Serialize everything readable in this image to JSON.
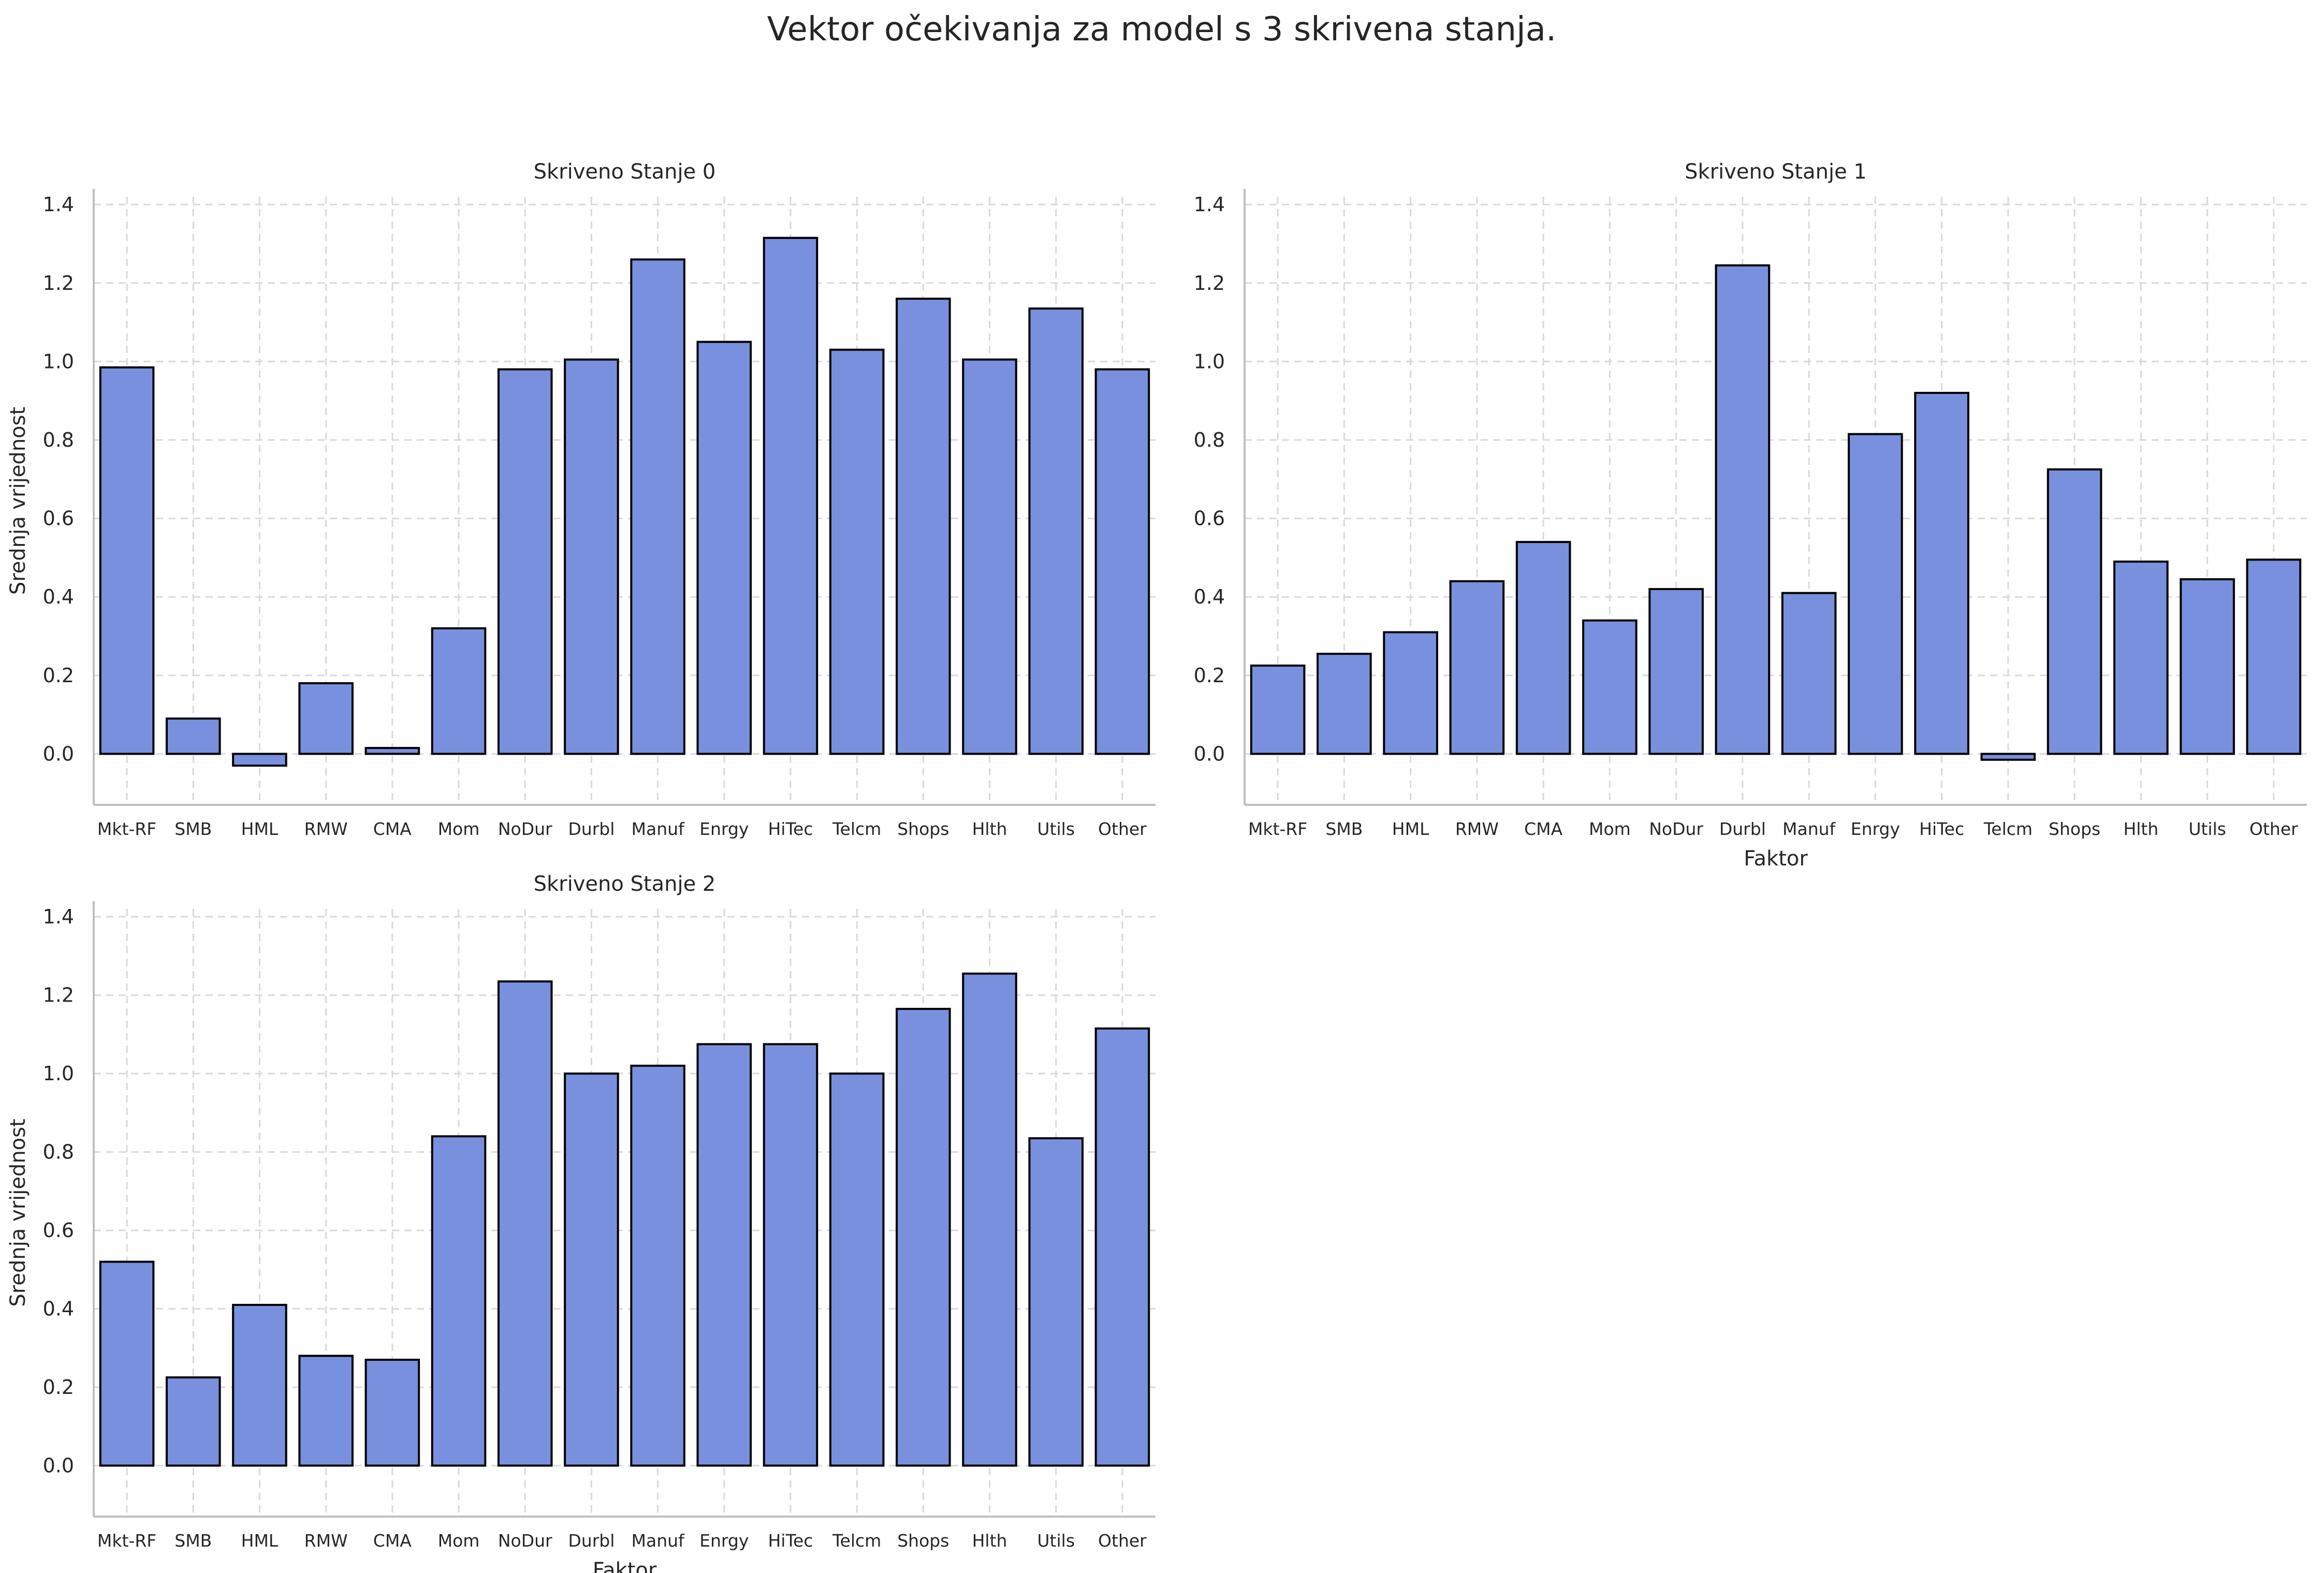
{
  "figure": {
    "title": "Vektor očekivanja za model s 3 skrivena stanja."
  },
  "colors": {
    "bar_fill": "#7890dd",
    "bar_edge": "#000000",
    "grid": "#d9d9d9",
    "axis": "#bfbfbf",
    "text": "#262626"
  },
  "chart_data": [
    {
      "type": "bar",
      "title": "Skriveno Stanje 0",
      "xlabel": "",
      "ylabel": "Srednja vrijednost",
      "categories": [
        "Mkt-RF",
        "SMB",
        "HML",
        "RMW",
        "CMA",
        "Mom",
        "NoDur",
        "Durbl",
        "Manuf",
        "Enrgy",
        "HiTec",
        "Telcm",
        "Shops",
        "Hlth",
        "Utils",
        "Other"
      ],
      "values": [
        0.985,
        0.09,
        -0.03,
        0.18,
        0.015,
        0.32,
        0.98,
        1.005,
        1.26,
        1.05,
        1.315,
        1.03,
        1.16,
        1.005,
        1.135,
        0.98
      ],
      "ylim": [
        -0.13,
        1.42
      ],
      "yticks": [
        0.0,
        0.2,
        0.4,
        0.6,
        0.8,
        1.0,
        1.2,
        1.4
      ],
      "grid": true
    },
    {
      "type": "bar",
      "title": "Skriveno Stanje 1",
      "xlabel": "Faktor",
      "ylabel": "",
      "categories": [
        "Mkt-RF",
        "SMB",
        "HML",
        "RMW",
        "CMA",
        "Mom",
        "NoDur",
        "Durbl",
        "Manuf",
        "Enrgy",
        "HiTec",
        "Telcm",
        "Shops",
        "Hlth",
        "Utils",
        "Other"
      ],
      "values": [
        0.225,
        0.255,
        0.31,
        0.44,
        0.54,
        0.34,
        0.42,
        1.245,
        0.41,
        0.815,
        0.92,
        -0.015,
        0.725,
        0.49,
        0.445,
        0.495
      ],
      "ylim": [
        -0.13,
        1.42
      ],
      "yticks": [
        0.0,
        0.2,
        0.4,
        0.6,
        0.8,
        1.0,
        1.2,
        1.4
      ],
      "grid": true
    },
    {
      "type": "bar",
      "title": "Skriveno Stanje 2",
      "xlabel": "Faktor",
      "ylabel": "Srednja vrijednost",
      "categories": [
        "Mkt-RF",
        "SMB",
        "HML",
        "RMW",
        "CMA",
        "Mom",
        "NoDur",
        "Durbl",
        "Manuf",
        "Enrgy",
        "HiTec",
        "Telcm",
        "Shops",
        "Hlth",
        "Utils",
        "Other"
      ],
      "values": [
        0.52,
        0.225,
        0.41,
        0.28,
        0.27,
        0.84,
        1.235,
        1.0,
        1.02,
        1.075,
        1.075,
        1.0,
        1.165,
        1.255,
        0.835,
        1.115
      ],
      "ylim": [
        -0.13,
        1.42
      ],
      "yticks": [
        0.0,
        0.2,
        0.4,
        0.6,
        0.8,
        1.0,
        1.2,
        1.4
      ],
      "grid": true
    }
  ]
}
